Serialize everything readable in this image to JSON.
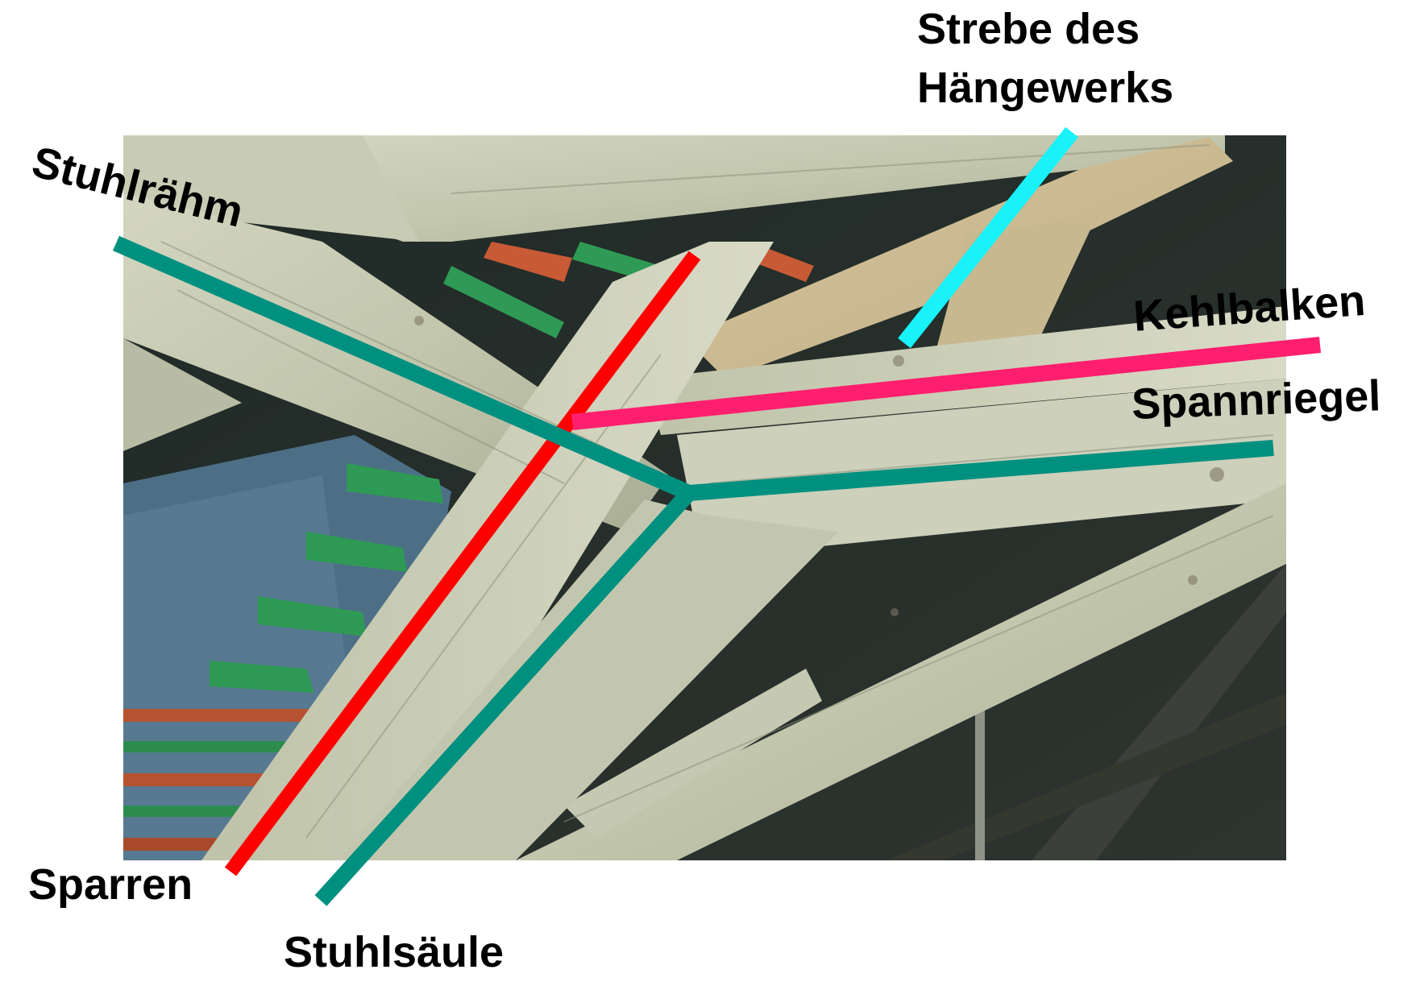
{
  "labels": {
    "stuhlraehm": "Stuhlrähm",
    "strebe_line1": "Strebe des",
    "strebe_line2": "Hängewerks",
    "kehlbalken": "Kehlbalken",
    "spannriegel": "Spannriegel",
    "sparren": "Sparren",
    "stuhlsaeule": "Stuhlsäule"
  },
  "colors": {
    "sparren_line": "#ff0000",
    "stuhl_lines": "#009080",
    "kehlbalken_line": "#ff1f6e",
    "strebe_line": "#18f2f8",
    "label_text": "#000000",
    "background": "#ffffff"
  },
  "photo": {
    "subject": "wooden roof truss"
  }
}
